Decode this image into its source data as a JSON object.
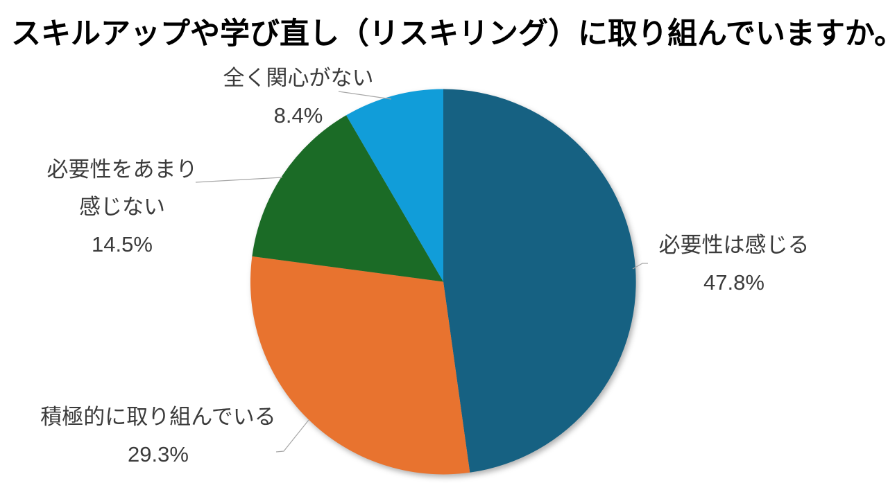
{
  "title": "スキルアップや学び直し（リスキリング）に取り組んでいますか。",
  "colors": {
    "background": "#FFFFFF",
    "title_text": "#000000",
    "label_text": "#3B3B3B",
    "leader_line": "#A6A6A6"
  },
  "chart_data": {
    "type": "pie",
    "title": "スキルアップや学び直し（リスキリング）に取り組んでいますか。",
    "start_angle_deg": 0,
    "direction": "clockwise",
    "legend": "none",
    "label_style": "outside callouts with gray leader lines",
    "slices": [
      {
        "label": "必要性は感じる",
        "label_lines": [
          "必要性は感じる"
        ],
        "value": 47.8,
        "percent_display": "47.8%",
        "color": "#166182"
      },
      {
        "label": "積極的に取り組んでいる",
        "label_lines": [
          "積極的に取り組んでいる"
        ],
        "value": 29.3,
        "percent_display": "29.3%",
        "color": "#E8732F"
      },
      {
        "label": "必要性をあまり感じない",
        "label_lines": [
          "必要性をあまり",
          "感じない"
        ],
        "value": 14.5,
        "percent_display": "14.5%",
        "color": "#1B6B26"
      },
      {
        "label": "全く関心がない",
        "label_lines": [
          "全く関心がない"
        ],
        "value": 8.4,
        "percent_display": "8.4%",
        "color": "#119DD9"
      }
    ]
  }
}
